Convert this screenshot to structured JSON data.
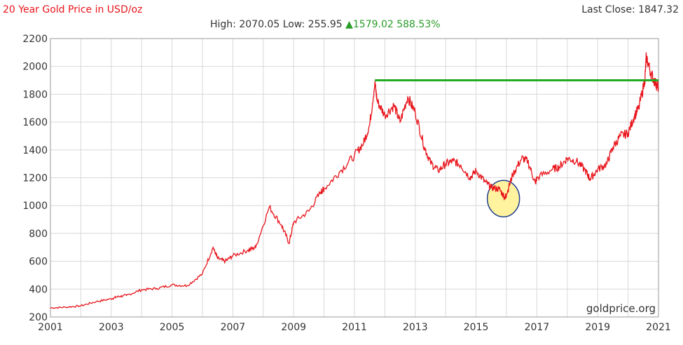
{
  "header": {
    "title": "20 Year Gold Price in USD/oz",
    "last_close": "Last Close: 1847.32",
    "stats_prefix": "High: 2070.05 Low: 255.95",
    "change_arrow": "▲",
    "change_text": "1579.02 588.53%"
  },
  "watermark": "goldprice.org",
  "colors": {
    "price_line": "#e8141b",
    "resistance_line": "#22aa22",
    "highlight_fill": "#fff3a0",
    "highlight_stroke": "#1f3f8f"
  },
  "chart_data": {
    "type": "line",
    "title": "20 Year Gold Price in USD/oz",
    "xlabel": "",
    "ylabel": "",
    "xlim": [
      2001,
      2021
    ],
    "ylim": [
      200,
      2200
    ],
    "grid": true,
    "xticks": [
      2001,
      2003,
      2005,
      2007,
      2009,
      2011,
      2013,
      2015,
      2017,
      2019,
      2021
    ],
    "yticks": [
      200,
      400,
      600,
      800,
      1000,
      1200,
      1400,
      1600,
      1800,
      2000,
      2200
    ],
    "series": [
      {
        "x": [
          2001.0,
          2001.5,
          2002.0,
          2002.5,
          2003.0,
          2003.2,
          2003.5,
          2004.0,
          2004.5,
          2005.0,
          2005.5,
          2006.0,
          2006.35,
          2006.5,
          2006.75,
          2007.0,
          2007.5,
          2007.75,
          2008.2,
          2008.6,
          2008.85,
          2009.0,
          2009.5,
          2009.9,
          2010.0,
          2010.5,
          2011.0,
          2011.3,
          2011.5,
          2011.67,
          2011.75,
          2012.0,
          2012.3,
          2012.5,
          2012.75,
          2013.0,
          2013.3,
          2013.5,
          2013.75,
          2014.0,
          2014.25,
          2014.5,
          2014.8,
          2015.0,
          2015.3,
          2015.5,
          2015.75,
          2015.95,
          2016.0,
          2016.2,
          2016.5,
          2016.7,
          2016.95,
          2017.0,
          2017.5,
          2017.75,
          2018.0,
          2018.3,
          2018.6,
          2018.75,
          2019.0,
          2019.3,
          2019.5,
          2019.75,
          2020.0,
          2020.2,
          2020.35,
          2020.55,
          2020.6,
          2020.75,
          2020.9,
          2021.0
        ],
        "y": [
          265,
          270,
          280,
          310,
          330,
          345,
          355,
          395,
          405,
          430,
          425,
          510,
          700,
          620,
          600,
          640,
          680,
          700,
          990,
          860,
          730,
          880,
          960,
          1100,
          1120,
          1240,
          1360,
          1450,
          1580,
          1880,
          1750,
          1650,
          1720,
          1600,
          1780,
          1670,
          1420,
          1310,
          1250,
          1300,
          1320,
          1290,
          1200,
          1250,
          1170,
          1130,
          1120,
          1060,
          1080,
          1220,
          1340,
          1320,
          1160,
          1200,
          1260,
          1280,
          1340,
          1320,
          1250,
          1190,
          1260,
          1300,
          1420,
          1500,
          1520,
          1640,
          1700,
          1900,
          2070,
          1950,
          1880,
          1847
        ]
      }
    ],
    "annotations": {
      "horizontal_line": {
        "y": 1900,
        "x_start": 2011.67,
        "x_end": 2021.0
      },
      "highlight_circle": {
        "x": 2015.9,
        "y": 1050
      }
    }
  }
}
